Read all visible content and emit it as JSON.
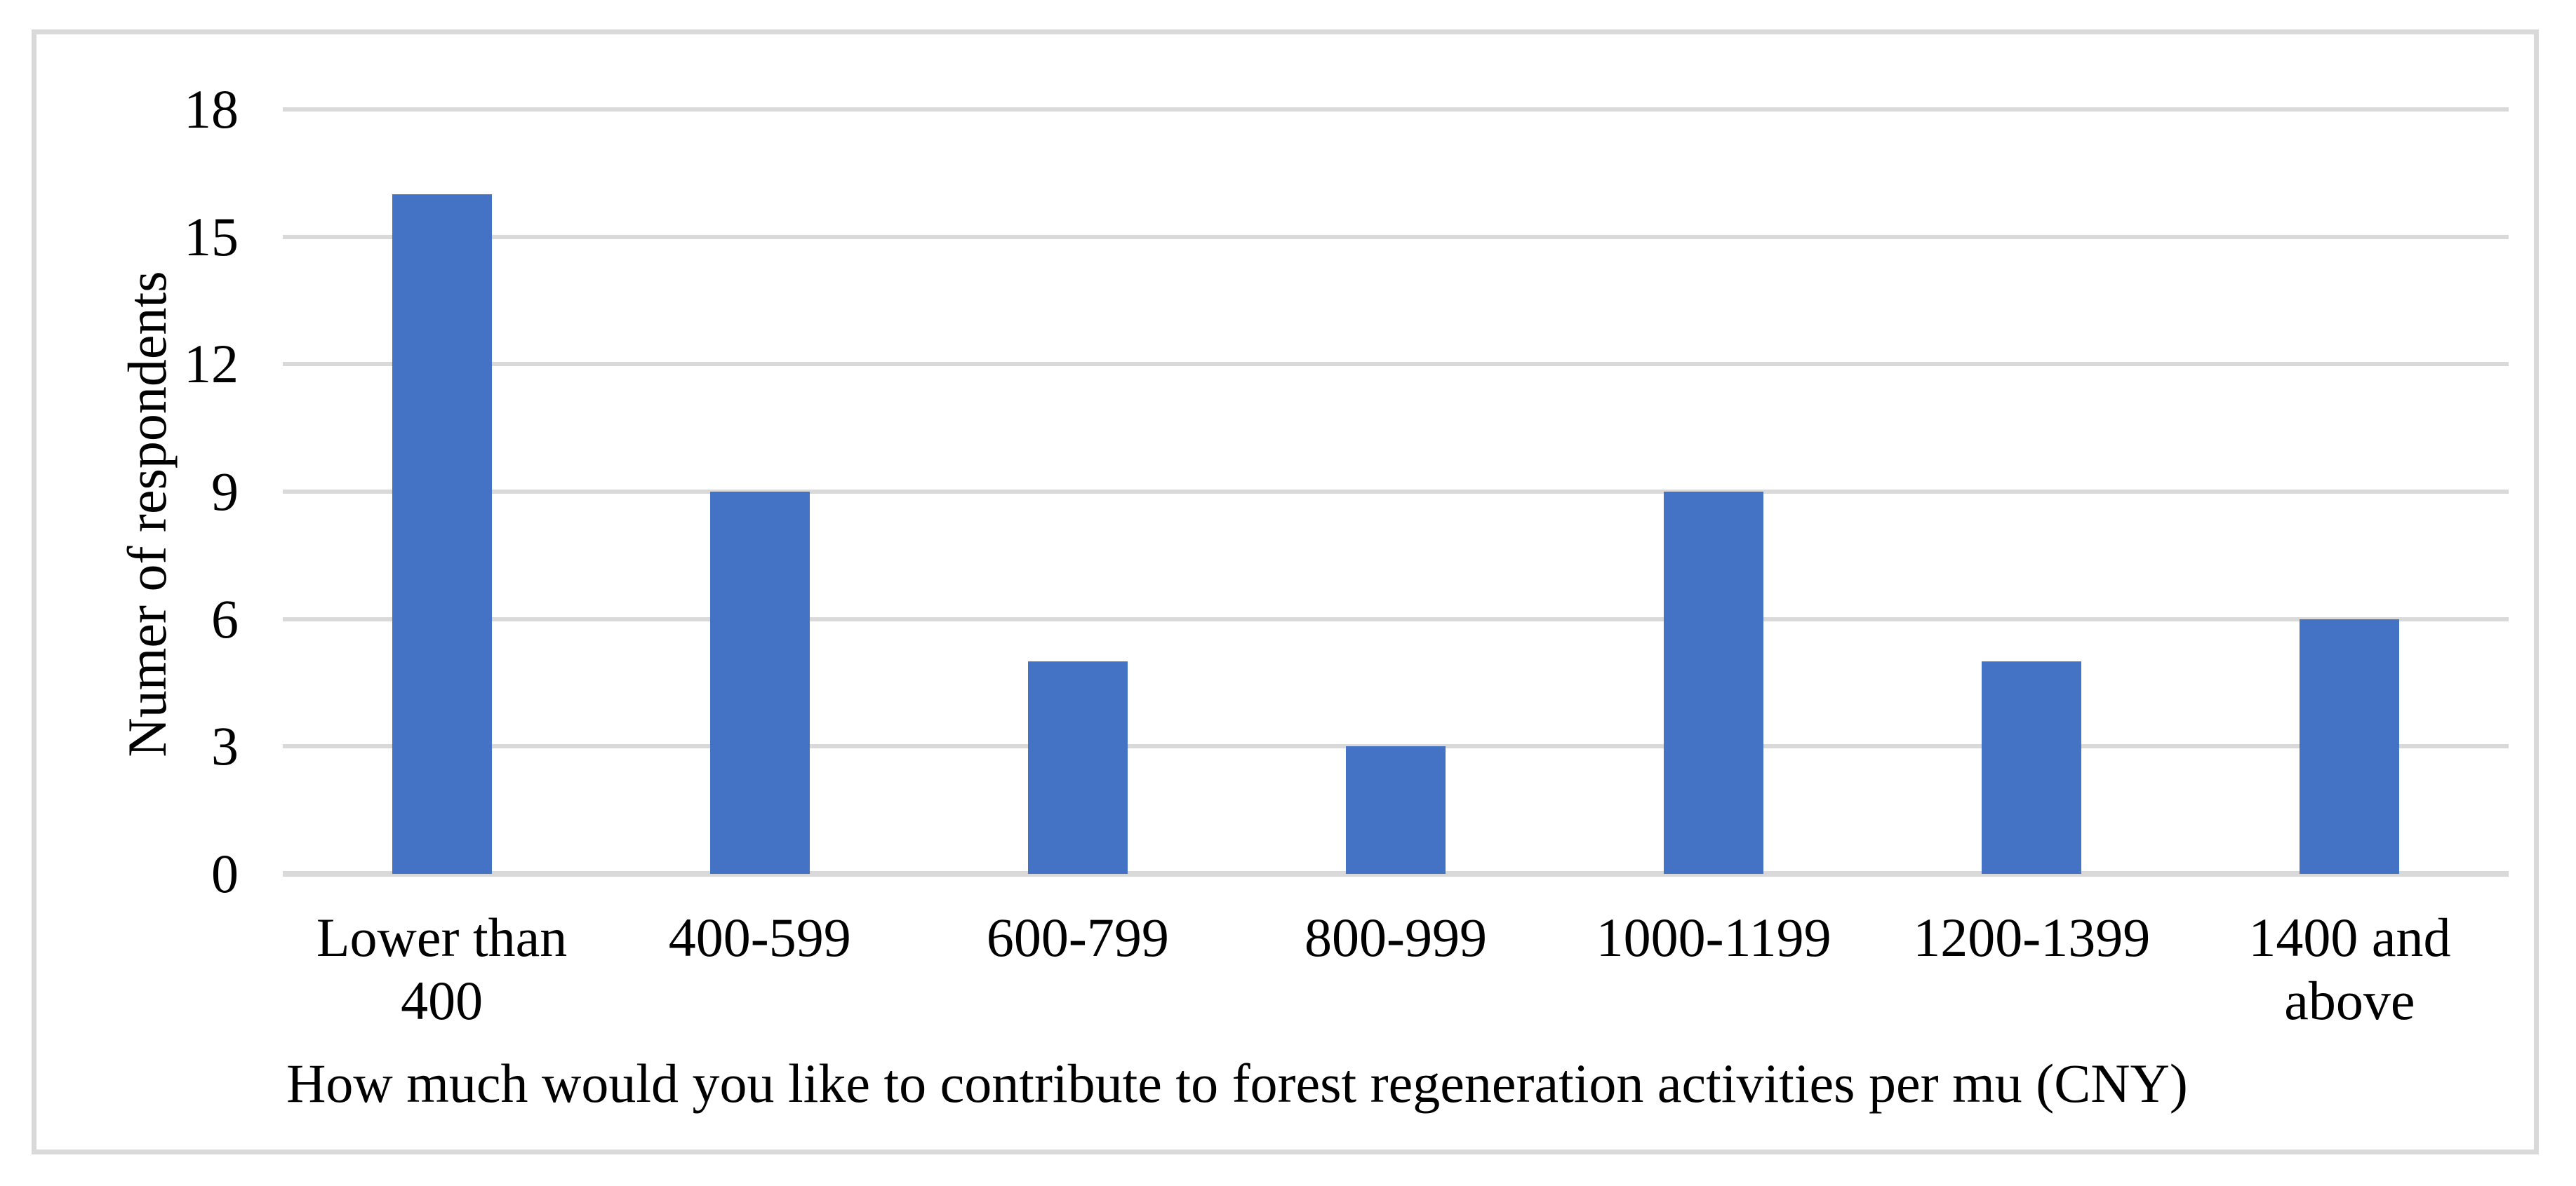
{
  "chart_data": {
    "type": "bar",
    "categories": [
      "Lower than 400",
      "400-599",
      "600-799",
      "800-999",
      "1000-1199",
      "1200-1399",
      "1400 and above"
    ],
    "values": [
      16,
      9,
      5,
      3,
      9,
      5,
      6
    ],
    "title": "",
    "xlabel": "How much would you like to contribute to forest regeneration activities per mu (CNY)",
    "ylabel": "Numer of respondents",
    "ylim": [
      0,
      18
    ],
    "yticks": [
      0,
      3,
      6,
      9,
      12,
      15,
      18
    ],
    "grid": "horizontal-gridlines-on",
    "legend_position": "none",
    "colors": {
      "bar": "#4472c4",
      "gridline": "#d9d9d9",
      "axis_line": "#d9d9d9",
      "frame_border": "#d9d9d9",
      "text": "#000000",
      "background": "#ffffff"
    }
  }
}
